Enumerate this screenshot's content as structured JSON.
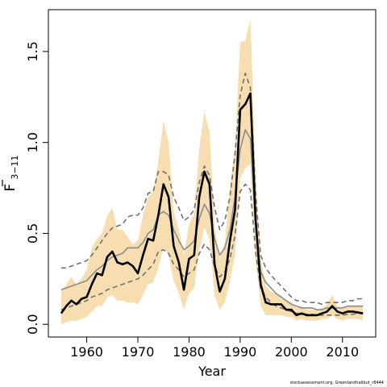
{
  "chart_data": {
    "type": "line",
    "xlabel": "Year",
    "ylabel_main": "F",
    "ylabel_sub": "3−11",
    "xlim": [
      1952.5,
      2016.5
    ],
    "ylim": [
      -0.07,
      1.73
    ],
    "xticks": [
      1960,
      1970,
      1980,
      1990,
      2000,
      2010
    ],
    "yticks": [
      0.0,
      0.5,
      1.0,
      1.5
    ],
    "ytick_labels": [
      "0.0",
      "0.5",
      "1.0",
      "1.5"
    ],
    "grid": false,
    "legend": "none",
    "x": [
      1955,
      1956,
      1957,
      1958,
      1959,
      1960,
      1961,
      1962,
      1963,
      1964,
      1965,
      1966,
      1967,
      1968,
      1969,
      1970,
      1971,
      1972,
      1973,
      1974,
      1975,
      1976,
      1977,
      1978,
      1979,
      1980,
      1981,
      1982,
      1983,
      1984,
      1985,
      1986,
      1987,
      1988,
      1989,
      1990,
      1991,
      1992,
      1993,
      1994,
      1995,
      1996,
      1997,
      1998,
      1999,
      2000,
      2001,
      2002,
      2003,
      2004,
      2005,
      2006,
      2007,
      2008,
      2009,
      2010,
      2011,
      2012,
      2013,
      2014
    ],
    "series": [
      {
        "role": "estimate",
        "values": [
          0.06,
          0.1,
          0.13,
          0.11,
          0.14,
          0.15,
          0.22,
          0.28,
          0.27,
          0.37,
          0.4,
          0.34,
          0.33,
          0.34,
          0.32,
          0.28,
          0.38,
          0.47,
          0.46,
          0.6,
          0.77,
          0.7,
          0.43,
          0.34,
          0.19,
          0.36,
          0.38,
          0.7,
          0.84,
          0.77,
          0.33,
          0.18,
          0.25,
          0.46,
          0.63,
          1.18,
          1.21,
          1.27,
          0.58,
          0.22,
          0.12,
          0.11,
          0.11,
          0.11,
          0.08,
          0.08,
          0.05,
          0.06,
          0.05,
          0.05,
          0.05,
          0.06,
          0.07,
          0.1,
          0.07,
          0.06,
          0.07,
          0.07,
          0.065,
          0.06
        ]
      },
      {
        "role": "median",
        "values": [
          0.19,
          0.2,
          0.21,
          0.22,
          0.23,
          0.24,
          0.27,
          0.3,
          0.32,
          0.35,
          0.37,
          0.38,
          0.39,
          0.42,
          0.42,
          0.42,
          0.45,
          0.5,
          0.52,
          0.6,
          0.62,
          0.6,
          0.52,
          0.46,
          0.41,
          0.43,
          0.46,
          0.58,
          0.66,
          0.61,
          0.47,
          0.38,
          0.42,
          0.52,
          0.7,
          0.96,
          1.07,
          1.02,
          0.55,
          0.29,
          0.23,
          0.2,
          0.17,
          0.15,
          0.13,
          0.11,
          0.1,
          0.09,
          0.09,
          0.09,
          0.08,
          0.08,
          0.09,
          0.09,
          0.09,
          0.09,
          0.1,
          0.1,
          0.1,
          0.1
        ]
      },
      {
        "role": "upper-bound",
        "values": [
          0.31,
          0.31,
          0.32,
          0.33,
          0.34,
          0.35,
          0.38,
          0.42,
          0.46,
          0.5,
          0.53,
          0.54,
          0.55,
          0.59,
          0.6,
          0.6,
          0.64,
          0.72,
          0.73,
          0.84,
          0.84,
          0.82,
          0.7,
          0.64,
          0.57,
          0.59,
          0.63,
          0.78,
          0.87,
          0.82,
          0.64,
          0.52,
          0.57,
          0.7,
          0.94,
          1.26,
          1.38,
          1.3,
          0.72,
          0.38,
          0.31,
          0.27,
          0.24,
          0.21,
          0.18,
          0.15,
          0.13,
          0.13,
          0.12,
          0.12,
          0.12,
          0.11,
          0.12,
          0.12,
          0.12,
          0.12,
          0.13,
          0.13,
          0.14,
          0.14
        ]
      },
      {
        "role": "lower-bound",
        "values": [
          0.08,
          0.09,
          0.1,
          0.11,
          0.12,
          0.13,
          0.15,
          0.16,
          0.17,
          0.19,
          0.2,
          0.21,
          0.22,
          0.23,
          0.24,
          0.25,
          0.27,
          0.3,
          0.33,
          0.4,
          0.41,
          0.39,
          0.33,
          0.3,
          0.26,
          0.28,
          0.3,
          0.39,
          0.44,
          0.41,
          0.32,
          0.26,
          0.29,
          0.36,
          0.49,
          0.73,
          0.77,
          0.74,
          0.4,
          0.2,
          0.15,
          0.12,
          0.1,
          0.09,
          0.08,
          0.07,
          0.06,
          0.06,
          0.055,
          0.055,
          0.05,
          0.05,
          0.05,
          0.05,
          0.05,
          0.05,
          0.055,
          0.055,
          0.06,
          0.06
        ]
      },
      {
        "role": "band-upper",
        "values": [
          0.18,
          0.22,
          0.26,
          0.22,
          0.25,
          0.3,
          0.42,
          0.47,
          0.5,
          0.6,
          0.64,
          0.52,
          0.52,
          0.48,
          0.44,
          0.46,
          0.6,
          0.7,
          0.73,
          0.9,
          1.12,
          1.0,
          0.62,
          0.52,
          0.38,
          0.55,
          0.61,
          0.97,
          1.17,
          1.06,
          0.54,
          0.36,
          0.45,
          0.75,
          0.98,
          1.55,
          1.56,
          1.68,
          0.83,
          0.36,
          0.21,
          0.18,
          0.17,
          0.16,
          0.13,
          0.12,
          0.09,
          0.1,
          0.08,
          0.08,
          0.08,
          0.09,
          0.11,
          0.16,
          0.1,
          0.09,
          0.1,
          0.1,
          0.1,
          0.1
        ]
      },
      {
        "role": "band-lower",
        "values": [
          0.0,
          0.01,
          0.02,
          0.02,
          0.03,
          0.04,
          0.07,
          0.1,
          0.1,
          0.15,
          0.16,
          0.13,
          0.13,
          0.12,
          0.12,
          0.11,
          0.16,
          0.22,
          0.23,
          0.31,
          0.42,
          0.38,
          0.24,
          0.17,
          0.08,
          0.17,
          0.2,
          0.41,
          0.53,
          0.47,
          0.16,
          0.08,
          0.12,
          0.24,
          0.38,
          0.8,
          0.86,
          0.88,
          0.36,
          0.1,
          0.05,
          0.05,
          0.05,
          0.05,
          0.04,
          0.04,
          0.02,
          0.03,
          0.02,
          0.02,
          0.02,
          0.03,
          0.03,
          0.05,
          0.03,
          0.02,
          0.03,
          0.03,
          0.03,
          0.02
        ]
      }
    ],
    "colors": {
      "band": "#f6deb0",
      "estimate": "#000000",
      "median": "#8c8c8c",
      "bounds": "#707070",
      "axis": "#000000"
    },
    "source_note": "stockassessment.org, Greenlandhalibut_r8444"
  }
}
